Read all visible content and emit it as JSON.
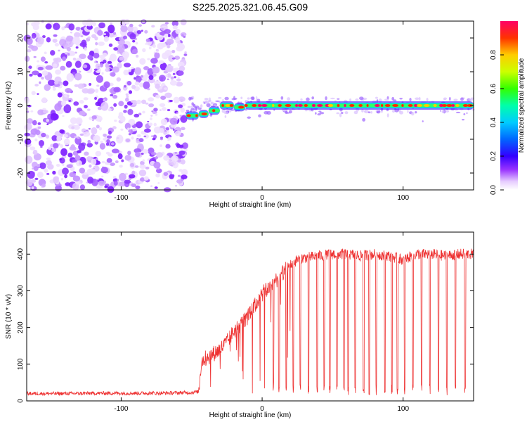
{
  "title": "S225.2025.321.06.45.G09",
  "chart_data": [
    {
      "type": "heatmap",
      "title": "S225.2025.321.06.45.G09",
      "xlabel": "Height of straight line (km)",
      "ylabel": "Frequency (Hz)",
      "xlim": [
        -167,
        150
      ],
      "ylim": [
        -25,
        25
      ],
      "xticks": [
        -100,
        0,
        100
      ],
      "yticks": [
        -20,
        -10,
        0,
        10,
        20
      ],
      "noise_region_x": [
        -167,
        -54
      ],
      "tone_segments": [
        {
          "x": [
            -54,
            -45
          ],
          "freq": -3.0
        },
        {
          "x": [
            -45,
            -38
          ],
          "freq": -2.5
        },
        {
          "x": [
            -38,
            -30
          ],
          "freq": -1.5
        },
        {
          "x": [
            -30,
            -20
          ],
          "freq": 0.0
        },
        {
          "x": [
            -20,
            -12
          ],
          "freq": -0.5
        },
        {
          "x": [
            -12,
            150
          ],
          "freq": 0.0
        }
      ],
      "colorbar": {
        "label": "Normalized spectral amplitude",
        "range": [
          0,
          1
        ],
        "ticks": [
          0.0,
          0.2,
          0.4,
          0.6,
          0.8
        ],
        "tick_labels": [
          "0.0",
          "0.2",
          "0.4",
          "0.6",
          "0.8"
        ]
      }
    },
    {
      "type": "line",
      "xlabel": "Height of straight line (km)",
      "ylabel": "SNR (10 * v/v)",
      "xlim": [
        -167,
        150
      ],
      "ylim": [
        0,
        460
      ],
      "xticks": [
        -100,
        0,
        100
      ],
      "yticks": [
        0,
        100,
        200,
        300,
        400
      ],
      "series": [
        {
          "name": "SNR",
          "color": "#ee3333",
          "x": [
            -167,
            -140,
            -110,
            -80,
            -60,
            -50,
            -45,
            -43,
            -38,
            -30,
            -25,
            -20,
            -15,
            -10,
            -5,
            0,
            5,
            10,
            15,
            20,
            25,
            30,
            40,
            50,
            60,
            70,
            80,
            90,
            100,
            110,
            120,
            130,
            140,
            150
          ],
          "y": [
            20,
            20,
            21,
            21,
            22,
            23,
            25,
            110,
            120,
            140,
            160,
            190,
            210,
            230,
            260,
            290,
            310,
            330,
            350,
            370,
            385,
            390,
            395,
            400,
            400,
            395,
            400,
            395,
            385,
            400,
            400,
            395,
            400,
            400
          ]
        }
      ],
      "dropouts_x": [
        8,
        12,
        17,
        22,
        27,
        33,
        39,
        44,
        48,
        53,
        58,
        61,
        66,
        72,
        76,
        81,
        87,
        92,
        96,
        101,
        107,
        113,
        119,
        125,
        131,
        137,
        144
      ]
    }
  ]
}
